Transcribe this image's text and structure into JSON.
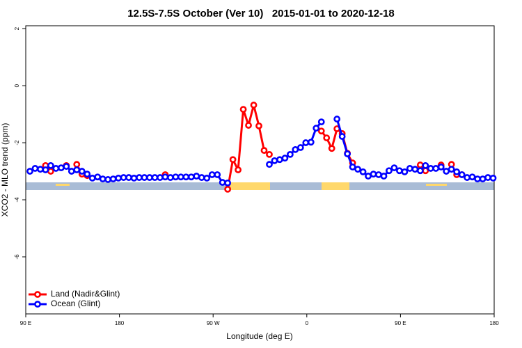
{
  "chart_data": {
    "type": "line",
    "title": "12.5S-7.5S October (Ver 10)   2015-01-01 to 2020-12-18",
    "x_label": "Longitude (deg E)",
    "y_label": "XCO2 - MLO trend (ppm)",
    "xlim": [
      90,
      540
    ],
    "ylim": [
      -8,
      2.1
    ],
    "xticks": [
      {
        "value": 90,
        "label": "90 E"
      },
      180,
      {
        "value": 270,
        "label": "90 W"
      },
      {
        "value": 360,
        "label": "0"
      },
      {
        "value": 450,
        "label": "90 E"
      },
      {
        "value": 540,
        "label": "180"
      }
    ],
    "yticks": [
      2,
      0,
      -2,
      -4,
      -6
    ],
    "legend": "bottom-left",
    "x": [
      94,
      99,
      104,
      109,
      114,
      119,
      124,
      129,
      134,
      139,
      144,
      149,
      154,
      159,
      164,
      169,
      174,
      179,
      184,
      189,
      194,
      199,
      204,
      209,
      214,
      219,
      224,
      229,
      234,
      239,
      244,
      249,
      254,
      259,
      264,
      269,
      274,
      279,
      284,
      289,
      294,
      299,
      304,
      309,
      314,
      319,
      324,
      329,
      334,
      339,
      344,
      349,
      354,
      359,
      364,
      369,
      374,
      379,
      384,
      389,
      394,
      399,
      404,
      409,
      414,
      419,
      424,
      429,
      434,
      439,
      444,
      449,
      454,
      459,
      464,
      469,
      474,
      479,
      484,
      489,
      494,
      499,
      504,
      509,
      514,
      519,
      524,
      529,
      534,
      539
    ],
    "series": [
      {
        "name": "Land (Nadir&Glint)",
        "color": "#ff0000",
        "values": [
          null,
          null,
          null,
          -2.8,
          -3.0,
          null,
          null,
          -2.8,
          null,
          -2.76,
          -3.1,
          -3.15,
          null,
          null,
          null,
          null,
          null,
          null,
          null,
          null,
          null,
          null,
          null,
          null,
          null,
          null,
          -3.12,
          null,
          null,
          null,
          null,
          null,
          null,
          null,
          null,
          null,
          null,
          null,
          -3.63,
          -2.59,
          -2.95,
          -0.83,
          -1.39,
          -0.68,
          -1.41,
          -2.27,
          -2.41,
          null,
          null,
          null,
          null,
          null,
          null,
          null,
          null,
          null,
          -1.59,
          -1.83,
          -2.2,
          -1.51,
          -1.68,
          -2.37,
          -2.71,
          null,
          null,
          null,
          null,
          null,
          null,
          null,
          null,
          null,
          null,
          null,
          null,
          -2.78,
          -2.98,
          null,
          null,
          -2.78,
          null,
          -2.76,
          -3.12,
          -3.12,
          null,
          null,
          null,
          null,
          null,
          null
        ]
      },
      {
        "name": "Ocean (Glint)",
        "color": "#0000ff",
        "values": [
          -3.0,
          -2.9,
          -2.93,
          -2.95,
          -2.8,
          -2.9,
          -2.88,
          -2.83,
          -3.0,
          -2.95,
          -3.0,
          -3.1,
          -3.24,
          -3.2,
          -3.27,
          -3.29,
          -3.27,
          -3.24,
          -3.22,
          -3.22,
          -3.24,
          -3.22,
          -3.22,
          -3.22,
          -3.22,
          -3.22,
          -3.2,
          -3.22,
          -3.2,
          -3.2,
          -3.2,
          -3.2,
          -3.17,
          -3.22,
          -3.24,
          -3.12,
          -3.12,
          -3.39,
          -3.41,
          null,
          null,
          null,
          null,
          null,
          null,
          null,
          -2.76,
          -2.63,
          -2.59,
          -2.54,
          -2.41,
          -2.24,
          -2.17,
          -2.0,
          -1.98,
          -1.49,
          -1.27,
          null,
          null,
          -1.17,
          -1.78,
          -2.39,
          -2.85,
          -2.93,
          -3.02,
          -3.17,
          -3.1,
          -3.12,
          -3.17,
          -2.98,
          -2.88,
          -2.98,
          -3.02,
          -2.9,
          -2.93,
          -2.98,
          -2.8,
          -2.9,
          -2.9,
          -2.85,
          -3.0,
          -2.93,
          -3.02,
          -3.12,
          -3.22,
          -3.2,
          -3.27,
          -3.27,
          -3.22,
          -3.24
        ]
      }
    ]
  }
}
